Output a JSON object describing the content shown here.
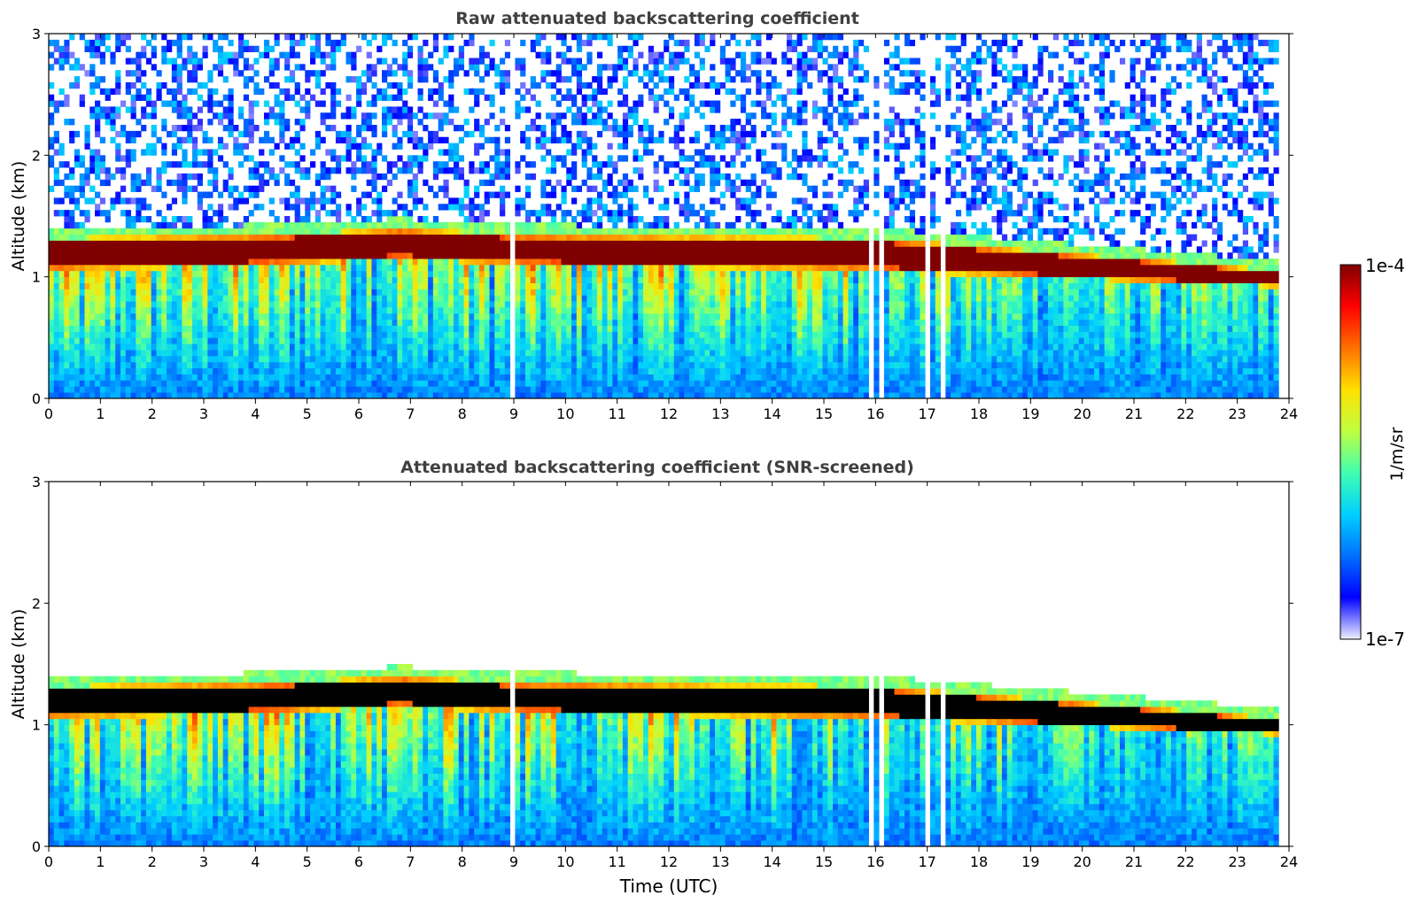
{
  "figure": {
    "xlabel": "Time (UTC)"
  },
  "colorbar": {
    "label": "1/m/sr",
    "top_label": "1e-4",
    "bottom_label": "1e-7",
    "scale": "log",
    "range": [
      1e-07,
      0.0001
    ],
    "colormap": "jet-like with pale/white low end",
    "colors": [
      "#eef0ff",
      "#0000ff",
      "#0070ff",
      "#00d0ff",
      "#40ffb0",
      "#c0ff40",
      "#ffe000",
      "#ff7000",
      "#ff0000",
      "#800000"
    ]
  },
  "screened_saturation_color": "#000000",
  "chart_data": [
    {
      "type": "heatmap",
      "title": "Raw attenuated backscattering coefficient",
      "xlabel": "",
      "ylabel": "Altitude (km)",
      "xlim": [
        0,
        24
      ],
      "ylim": [
        0,
        3
      ],
      "xticks": [
        "0",
        "1",
        "2",
        "3",
        "4",
        "5",
        "6",
        "7",
        "8",
        "9",
        "10",
        "11",
        "12",
        "13",
        "14",
        "15",
        "16",
        "17",
        "18",
        "19",
        "20",
        "21",
        "22",
        "23",
        "24"
      ],
      "yticks": [
        "0",
        "1",
        "2",
        "3"
      ],
      "data_end_hour": 23.8,
      "data_gaps_hours": [
        [
          8.88,
          9.0
        ],
        [
          15.85,
          15.92
        ],
        [
          16.1,
          16.2
        ],
        [
          16.95,
          17.05
        ],
        [
          17.25,
          17.32
        ]
      ],
      "layer_base_km": [
        [
          0,
          1.05
        ],
        [
          4.5,
          1.1
        ],
        [
          6.8,
          1.15
        ],
        [
          9,
          1.1
        ],
        [
          16,
          1.05
        ],
        [
          19,
          1.0
        ],
        [
          22,
          0.95
        ],
        [
          23.8,
          0.92
        ]
      ],
      "layer_top_km": [
        [
          0,
          1.32
        ],
        [
          4.5,
          1.35
        ],
        [
          6.8,
          1.4
        ],
        [
          9,
          1.35
        ],
        [
          16,
          1.32
        ],
        [
          19,
          1.22
        ],
        [
          22,
          1.12
        ],
        [
          23.8,
          1.05
        ]
      ]
    },
    {
      "type": "heatmap",
      "title": "Attenuated backscattering coefficient (SNR-screened)",
      "xlabel": "Time (UTC)",
      "ylabel": "Altitude (km)",
      "xlim": [
        0,
        24
      ],
      "ylim": [
        0,
        3
      ],
      "xticks": [
        "0",
        "1",
        "2",
        "3",
        "4",
        "5",
        "6",
        "7",
        "8",
        "9",
        "10",
        "11",
        "12",
        "13",
        "14",
        "15",
        "16",
        "17",
        "18",
        "19",
        "20",
        "21",
        "22",
        "23",
        "24"
      ],
      "yticks": [
        "0",
        "1",
        "2",
        "3"
      ],
      "data_end_hour": 23.8,
      "data_gaps_hours": [
        [
          8.88,
          9.0
        ],
        [
          15.85,
          15.92
        ],
        [
          16.1,
          16.2
        ],
        [
          16.95,
          17.05
        ],
        [
          17.25,
          17.32
        ]
      ],
      "layer_base_km": [
        [
          0,
          1.05
        ],
        [
          4.5,
          1.1
        ],
        [
          6.8,
          1.15
        ],
        [
          9,
          1.1
        ],
        [
          16,
          1.05
        ],
        [
          19,
          1.0
        ],
        [
          22,
          0.95
        ],
        [
          23.8,
          0.92
        ]
      ],
      "layer_top_km": [
        [
          0,
          1.32
        ],
        [
          4.5,
          1.35
        ],
        [
          6.8,
          1.4
        ],
        [
          9,
          1.35
        ],
        [
          16,
          1.32
        ],
        [
          19,
          1.22
        ],
        [
          22,
          1.12
        ],
        [
          23.8,
          1.05
        ]
      ]
    }
  ]
}
